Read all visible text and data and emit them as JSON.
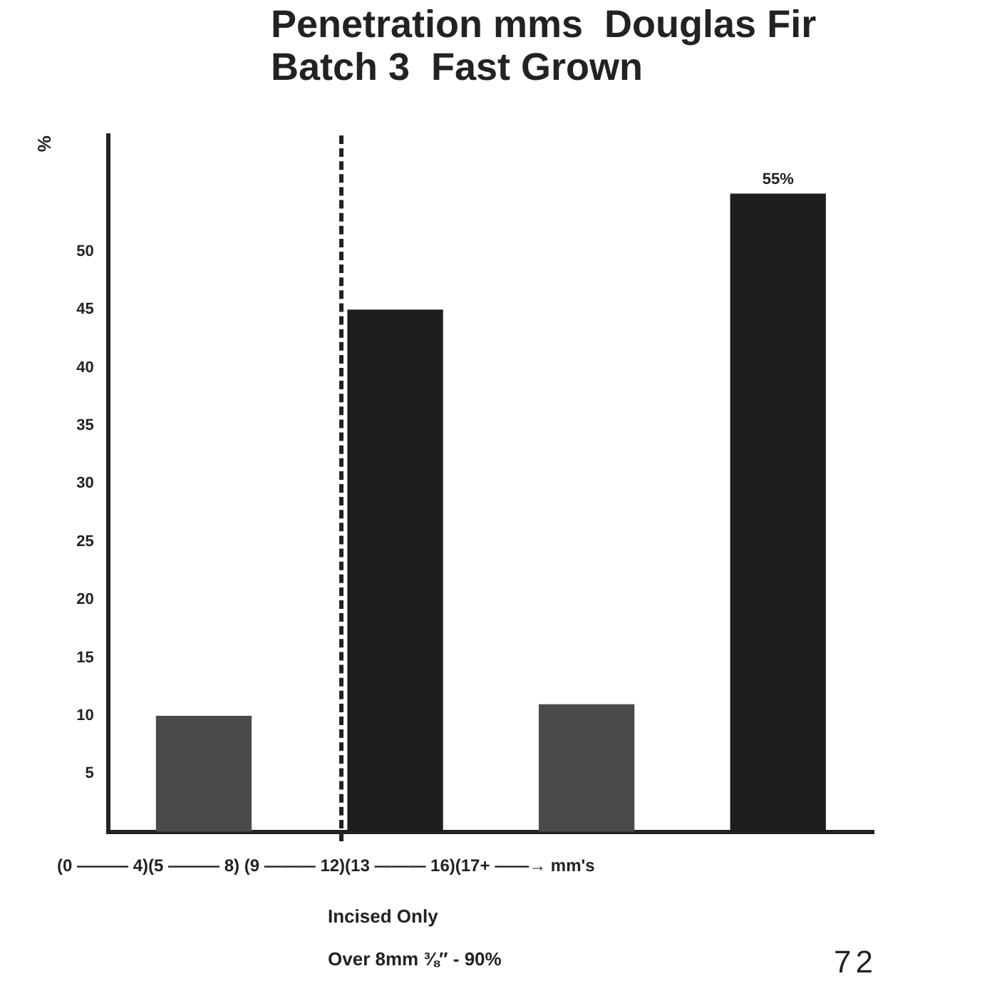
{
  "chart_data": {
    "type": "bar",
    "title": "Penetration mms  Douglas Fir\nBatch 3  Fast Grown",
    "ylabel": "%",
    "xlabel": "(0 ——— 4)(5 ——— 8) (9 ——— 12)(13 ——— 16)(17+ ——→ mm's",
    "categories": [
      null,
      null,
      null,
      null
    ],
    "values": [
      10,
      45,
      11,
      55
    ],
    "colors": [
      "#4a4a4a",
      "#1e1e1e",
      "#4a4a4a",
      "#1e1e1e"
    ],
    "value_labels": [
      null,
      null,
      null,
      "55%"
    ],
    "ylim": [
      0,
      60
    ],
    "yticks": [
      5,
      10,
      15,
      20,
      25,
      30,
      35,
      40,
      45,
      50
    ],
    "grid": false,
    "legend": false,
    "tick_labels": "y",
    "annotations": [
      "Incised Only",
      "Over 8mm ⅜″ - 90%",
      "72"
    ]
  }
}
